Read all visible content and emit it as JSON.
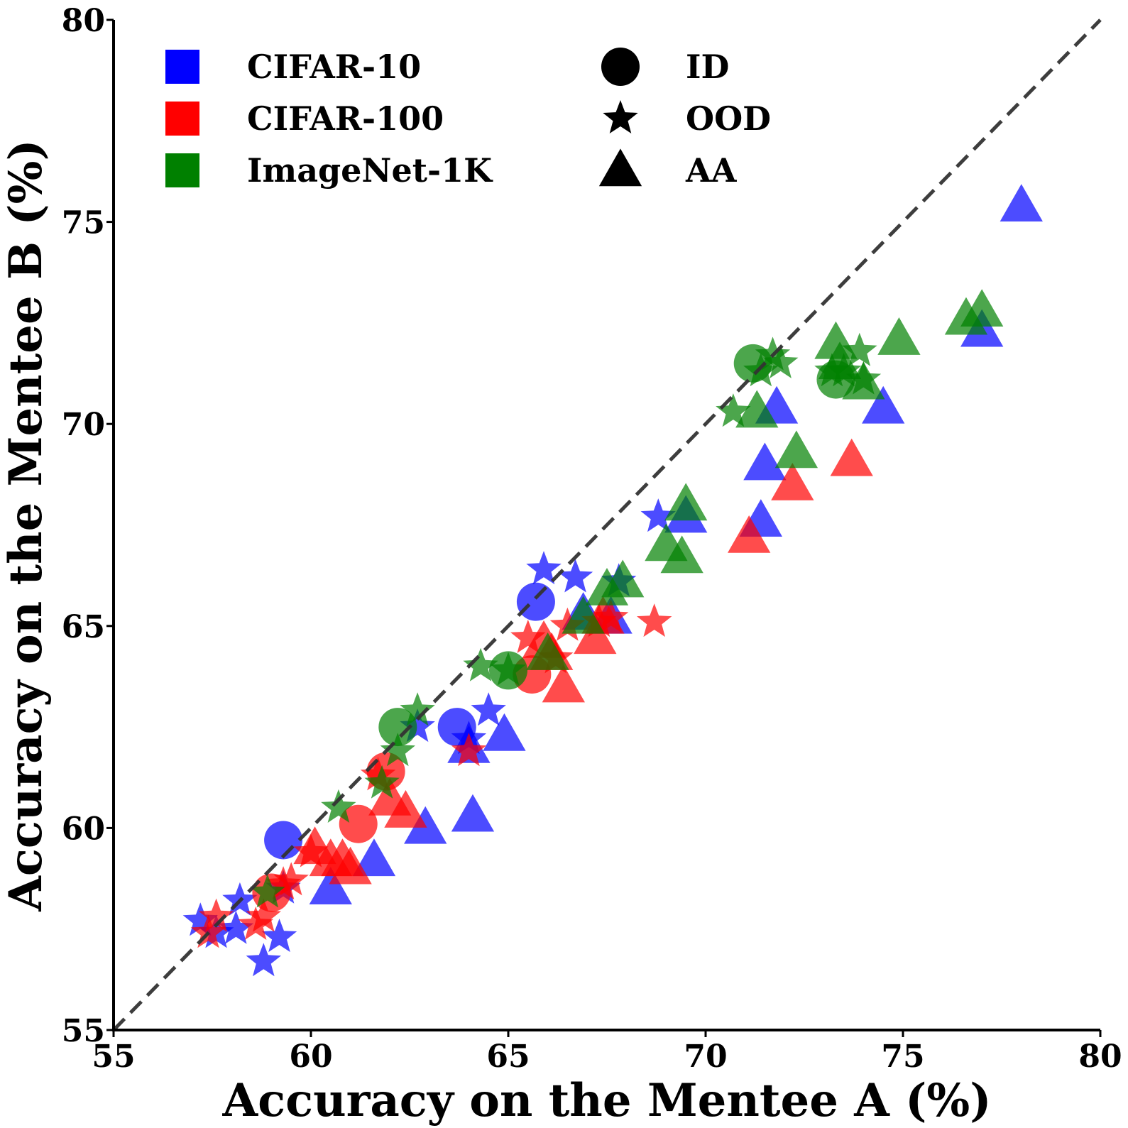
{
  "chart_data": {
    "type": "scatter",
    "xlabel": "Accuracy on the Mentee A (%)",
    "ylabel": "Accuracy on the Mentee B (%)",
    "xlim": [
      55,
      80
    ],
    "ylim": [
      55,
      80
    ],
    "xticks": [
      "55",
      "60",
      "65",
      "70",
      "75",
      "80"
    ],
    "yticks": [
      "55",
      "60",
      "65",
      "70",
      "75",
      "80"
    ],
    "reference_line": "y = x (dashed)",
    "legend_datasets": [
      {
        "name": "CIFAR-10",
        "color": "#0000ff"
      },
      {
        "name": "CIFAR-100",
        "color": "#ff0000"
      },
      {
        "name": "ImageNet-1K",
        "color": "#008000"
      }
    ],
    "legend_markers": [
      {
        "name": "ID",
        "marker": "circle"
      },
      {
        "name": "OOD",
        "marker": "star"
      },
      {
        "name": "AA",
        "marker": "triangle"
      }
    ],
    "series": [
      {
        "dataset": "CIFAR-10",
        "metric": "ID",
        "color": "#0000ff",
        "points": [
          [
            59.3,
            59.7
          ],
          [
            63.7,
            62.5
          ],
          [
            65.7,
            65.6
          ]
        ]
      },
      {
        "dataset": "CIFAR-10",
        "metric": "OOD",
        "color": "#0000ff",
        "points": [
          [
            57.2,
            57.7
          ],
          [
            57.6,
            57.4
          ],
          [
            58.1,
            57.5
          ],
          [
            58.2,
            58.2
          ],
          [
            58.8,
            56.7
          ],
          [
            59.2,
            57.3
          ],
          [
            59.3,
            58.5
          ],
          [
            62.7,
            62.5
          ],
          [
            64.0,
            62.2
          ],
          [
            64.5,
            62.9
          ],
          [
            65.9,
            66.4
          ],
          [
            66.7,
            66.2
          ],
          [
            67.8,
            66.1
          ],
          [
            68.8,
            67.7
          ]
        ]
      },
      {
        "dataset": "CIFAR-10",
        "metric": "AA",
        "color": "#0000ff",
        "points": [
          [
            60.5,
            58.5
          ],
          [
            61.6,
            59.2
          ],
          [
            62.9,
            60.0
          ],
          [
            64.1,
            60.3
          ],
          [
            64.0,
            62.0
          ],
          [
            64.9,
            62.3
          ],
          [
            66.9,
            65.3
          ],
          [
            67.6,
            65.2
          ],
          [
            69.5,
            67.7
          ],
          [
            71.4,
            67.6
          ],
          [
            71.5,
            69.0
          ],
          [
            71.8,
            70.4
          ],
          [
            74.5,
            70.4
          ],
          [
            77.0,
            72.3
          ],
          [
            78.0,
            75.4
          ]
        ]
      },
      {
        "dataset": "CIFAR-100",
        "metric": "ID",
        "color": "#ff0000",
        "points": [
          [
            59.0,
            58.4
          ],
          [
            61.2,
            60.1
          ],
          [
            61.9,
            61.4
          ],
          [
            65.6,
            63.8
          ]
        ]
      },
      {
        "dataset": "CIFAR-100",
        "metric": "OOD",
        "color": "#ff0000",
        "points": [
          [
            57.4,
            57.4
          ],
          [
            57.6,
            57.8
          ],
          [
            58.6,
            57.6
          ],
          [
            58.8,
            57.8
          ],
          [
            59.3,
            58.6
          ],
          [
            59.5,
            58.7
          ],
          [
            60.0,
            59.4
          ],
          [
            61.7,
            61.3
          ],
          [
            64.0,
            61.9
          ],
          [
            65.5,
            64.7
          ],
          [
            66.2,
            64.2
          ],
          [
            66.5,
            65.0
          ],
          [
            67.3,
            65.1
          ],
          [
            67.6,
            65.2
          ],
          [
            68.7,
            65.1
          ]
        ]
      },
      {
        "dataset": "CIFAR-100",
        "metric": "AA",
        "color": "#ff0000",
        "points": [
          [
            60.1,
            59.5
          ],
          [
            60.5,
            59.2
          ],
          [
            60.8,
            59.2
          ],
          [
            61.0,
            59.0
          ],
          [
            62.0,
            60.7
          ],
          [
            62.4,
            60.4
          ],
          [
            65.9,
            64.6
          ],
          [
            66.1,
            64.3
          ],
          [
            66.4,
            63.5
          ],
          [
            67.2,
            64.7
          ],
          [
            67.4,
            65.2
          ],
          [
            71.1,
            67.2
          ],
          [
            72.2,
            68.5
          ],
          [
            73.7,
            69.1
          ]
        ]
      },
      {
        "dataset": "ImageNet-1K",
        "metric": "ID",
        "color": "#008000",
        "points": [
          [
            62.2,
            62.5
          ],
          [
            65.0,
            63.9
          ],
          [
            71.2,
            71.5
          ],
          [
            73.3,
            71.1
          ]
        ]
      },
      {
        "dataset": "ImageNet-1K",
        "metric": "OOD",
        "color": "#008000",
        "points": [
          [
            58.9,
            58.4
          ],
          [
            60.7,
            60.5
          ],
          [
            61.8,
            61.1
          ],
          [
            62.2,
            61.9
          ],
          [
            62.7,
            62.9
          ],
          [
            64.3,
            64.0
          ],
          [
            65.0,
            63.9
          ],
          [
            70.7,
            70.3
          ],
          [
            71.4,
            71.3
          ],
          [
            71.7,
            71.7
          ],
          [
            71.9,
            71.5
          ],
          [
            73.2,
            71.3
          ],
          [
            73.5,
            71.3
          ],
          [
            73.9,
            71.8
          ],
          [
            74.0,
            71.1
          ]
        ]
      },
      {
        "dataset": "ImageNet-1K",
        "metric": "AA",
        "color": "#008000",
        "points": [
          [
            66.0,
            64.3
          ],
          [
            66.9,
            65.2
          ],
          [
            67.5,
            65.9
          ],
          [
            67.9,
            66.1
          ],
          [
            69.0,
            67.0
          ],
          [
            69.4,
            66.7
          ],
          [
            69.5,
            68.0
          ],
          [
            71.3,
            70.3
          ],
          [
            72.3,
            69.3
          ],
          [
            73.3,
            72.0
          ],
          [
            73.4,
            71.5
          ],
          [
            74.0,
            71.0
          ],
          [
            74.9,
            72.1
          ],
          [
            76.6,
            72.6
          ],
          [
            77.0,
            72.8
          ]
        ]
      }
    ]
  }
}
